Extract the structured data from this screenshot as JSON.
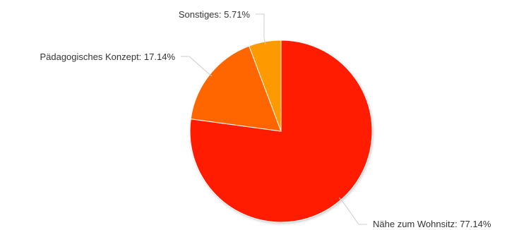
{
  "chart_data": {
    "type": "pie",
    "title": "",
    "legend": "none",
    "slices": [
      {
        "label": "Nähe zum Wohnsitz: 77.14%",
        "value": 77.14,
        "color": "#ff1a00"
      },
      {
        "label": "Pädagogisches Konzept: 17.14%",
        "value": 17.14,
        "color": "#ff6600"
      },
      {
        "label": "Sonstiges: 5.71%",
        "value": 5.71,
        "color": "#ff9900"
      }
    ]
  }
}
